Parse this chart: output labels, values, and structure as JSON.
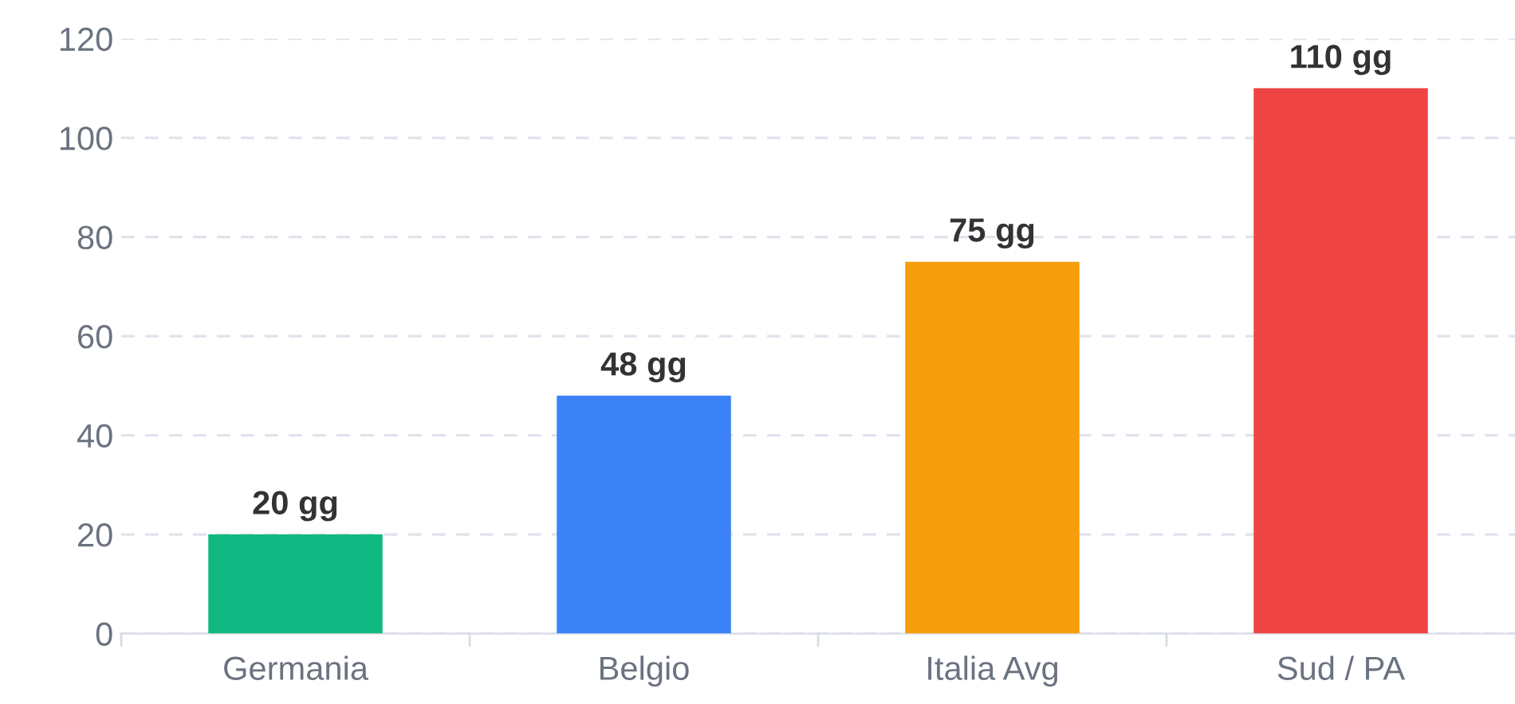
{
  "chart_data": {
    "type": "bar",
    "categories": [
      "Germania",
      "Belgio",
      "Italia Avg",
      "Sud / PA"
    ],
    "values": [
      20,
      48,
      75,
      110
    ],
    "colors": [
      "#10b981",
      "#3b82f6",
      "#f59e0b",
      "#ef4444"
    ],
    "value_labels": [
      "20 gg",
      "48 gg",
      "75 gg",
      "110 gg"
    ],
    "ylim": [
      0,
      120
    ],
    "yticks": [
      0,
      20,
      40,
      60,
      80,
      100,
      120
    ],
    "grid": "y",
    "legend": false
  }
}
